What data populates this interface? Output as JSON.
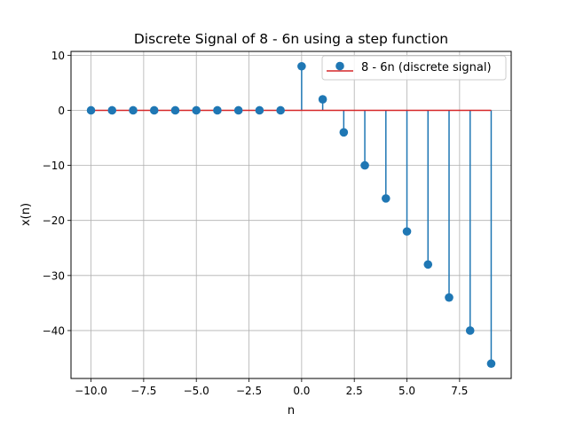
{
  "chart_data": {
    "type": "stem",
    "title": "Discrete Signal of 8 - 6n using a step function",
    "xlabel": "n",
    "ylabel": "x(n)",
    "xlim": [
      -10.95,
      9.95
    ],
    "ylim": [
      -48.7,
      10.7
    ],
    "grid": true,
    "legend_position": "top-right",
    "x_ticks": [
      -10.0,
      -7.5,
      -5.0,
      -2.5,
      0.0,
      2.5,
      5.0,
      7.5
    ],
    "x_tick_labels": [
      "−10.0",
      "−7.5",
      "−5.0",
      "−2.5",
      "0.0",
      "2.5",
      "5.0",
      "7.5"
    ],
    "y_ticks": [
      10,
      0,
      -10,
      -20,
      -30,
      -40
    ],
    "y_tick_labels": [
      "10",
      "0",
      "−10",
      "−20",
      "−30",
      "−40"
    ],
    "series": [
      {
        "name": "8 - 6n (discrete signal)",
        "x": [
          -10,
          -9,
          -8,
          -7,
          -6,
          -5,
          -4,
          -3,
          -2,
          -1,
          0,
          1,
          2,
          3,
          4,
          5,
          6,
          7,
          8,
          9
        ],
        "y": [
          0,
          0,
          0,
          0,
          0,
          0,
          0,
          0,
          0,
          0,
          8,
          2,
          -4,
          -10,
          -16,
          -22,
          -28,
          -34,
          -40,
          -46
        ]
      }
    ],
    "colors": {
      "stem": "#1f77b4",
      "baseline": "#d62728",
      "grid": "#b0b0b0"
    }
  }
}
